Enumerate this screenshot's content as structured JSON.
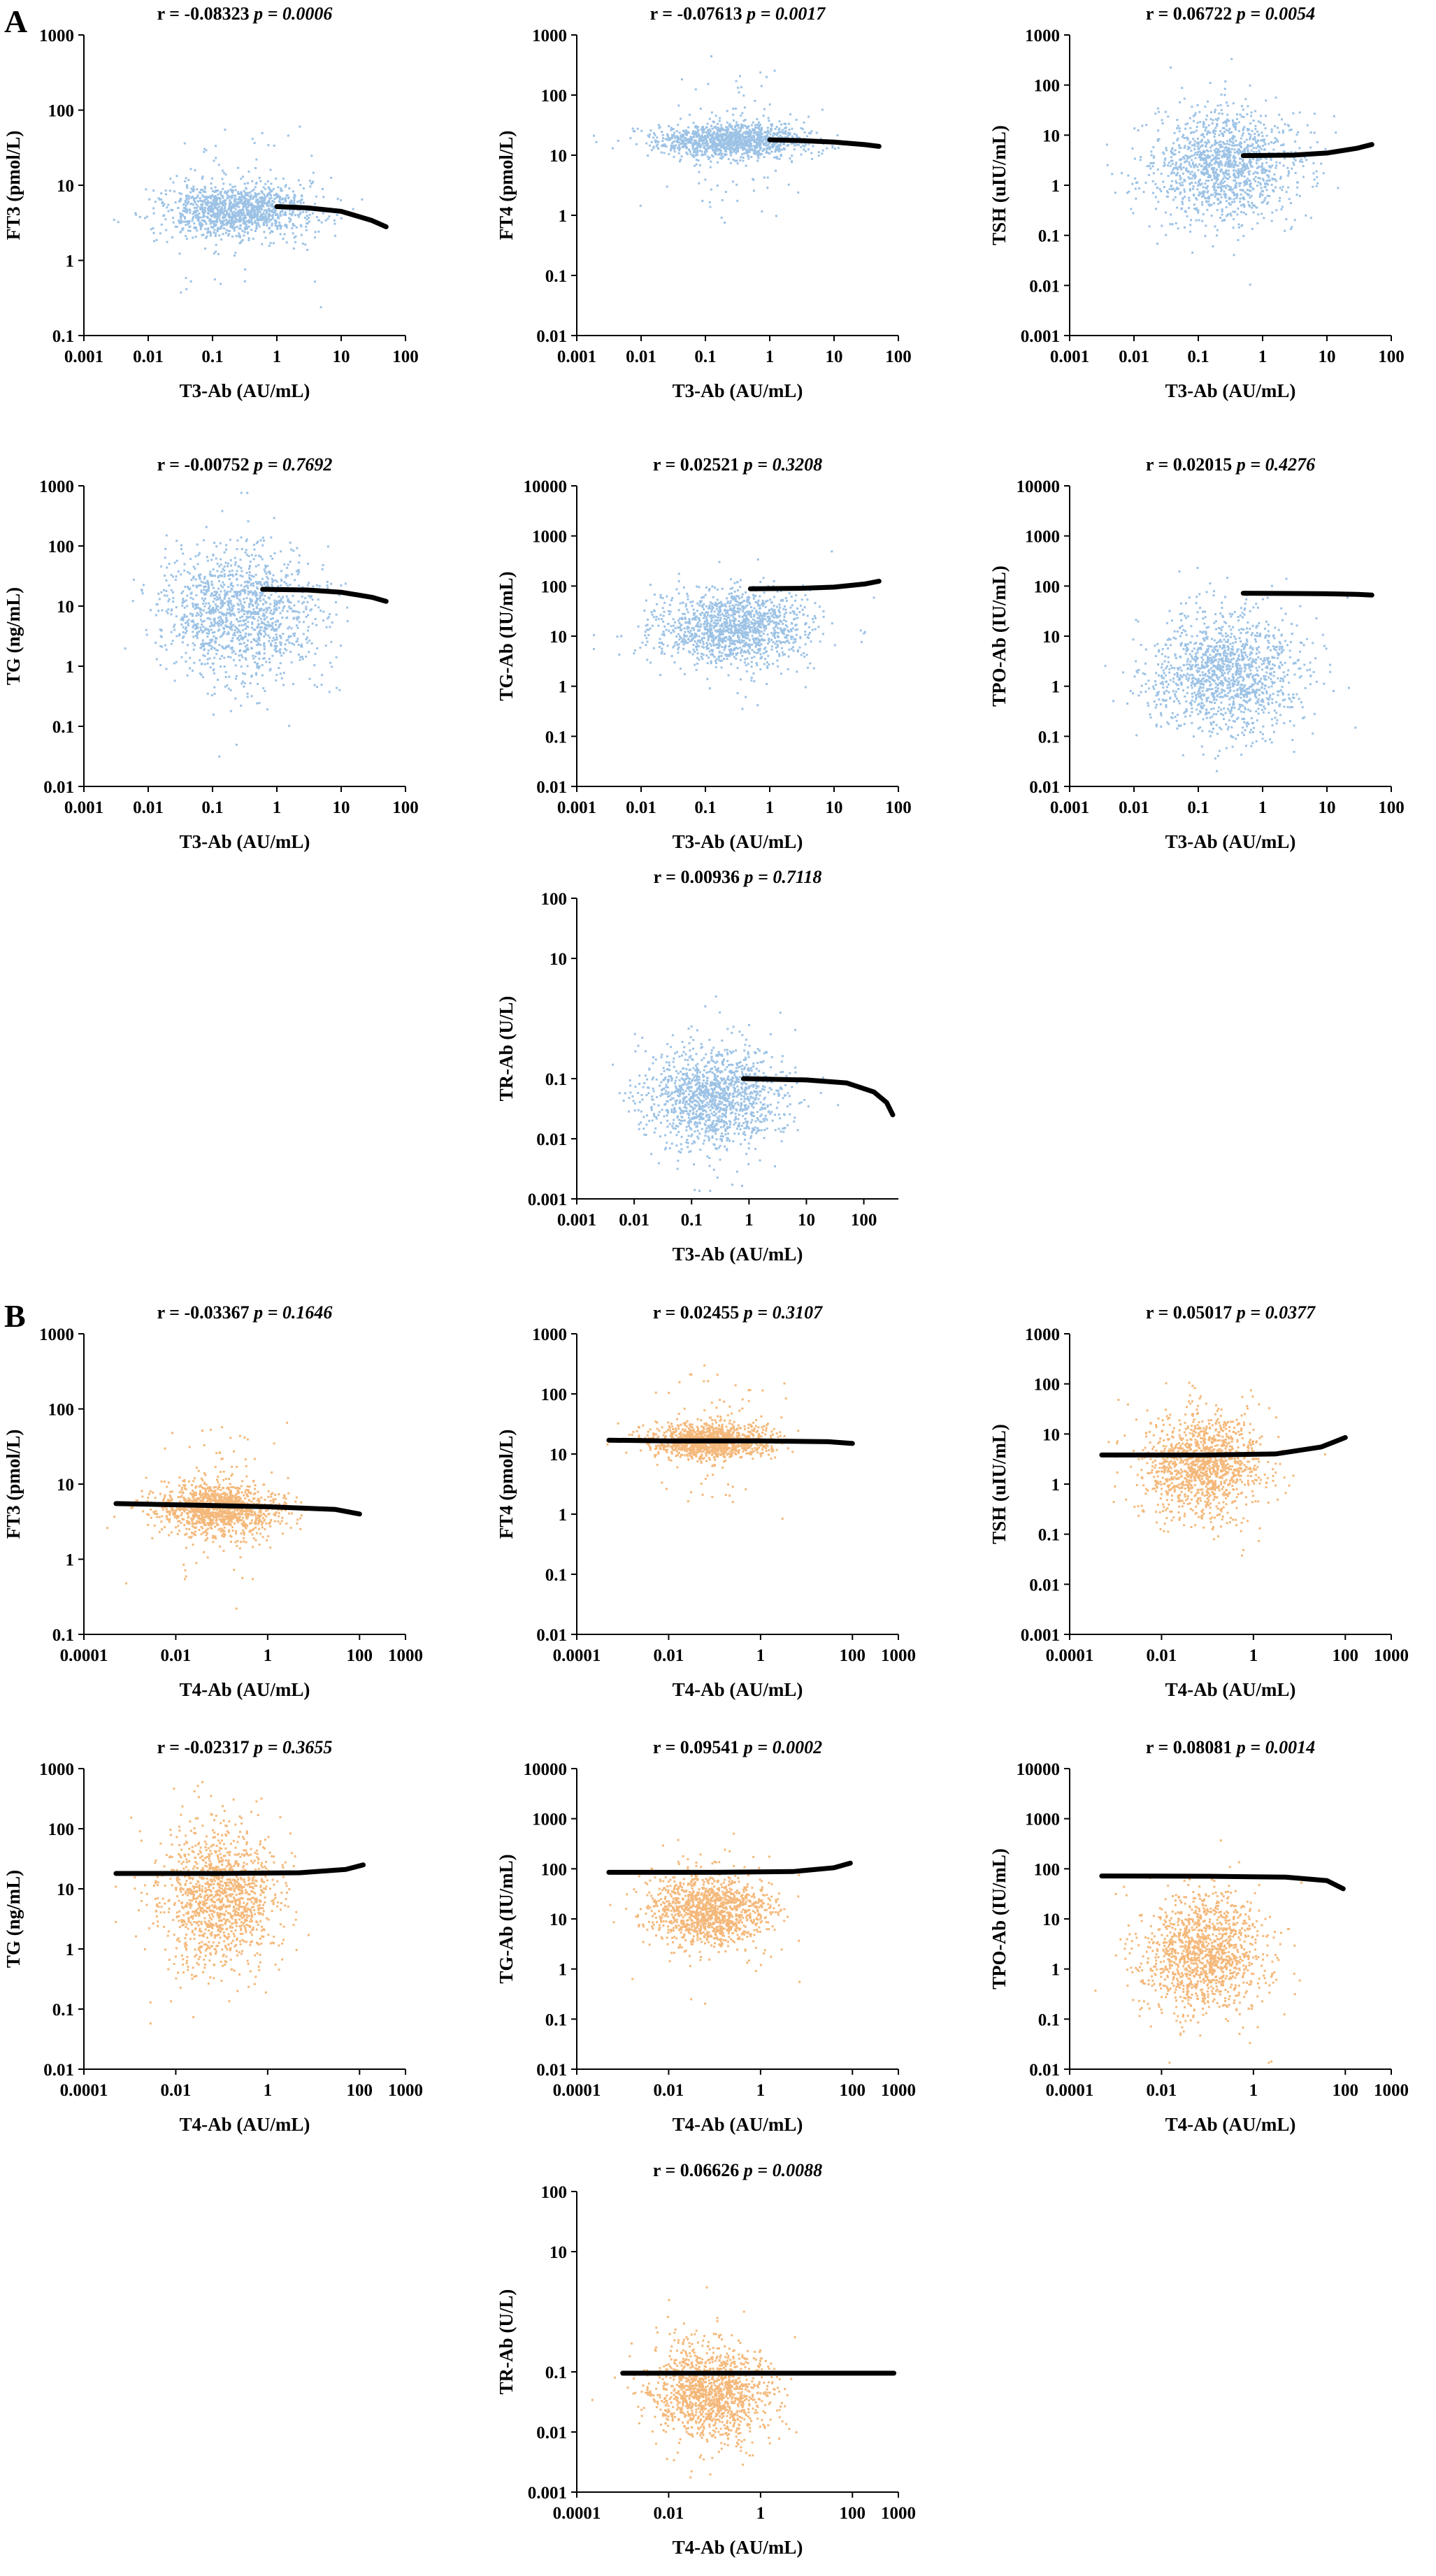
{
  "panels": [
    {
      "label": "A",
      "color": "#9cc2e5",
      "seed": 11
    },
    {
      "label": "B",
      "color": "#f4b87a",
      "seed": 29
    }
  ],
  "chart_data": [
    {
      "id": "a1",
      "panel": "A",
      "type": "scatter",
      "r": "r = -0.08323",
      "p": "p = 0.0006",
      "xlabel": "T3-Ab (AU/mL)",
      "ylabel": "FT3 (pmol/L)",
      "xticks": [
        "0.001",
        "0.01",
        "0.1",
        "1",
        "10",
        "100"
      ],
      "xlim": [
        0.001,
        100
      ],
      "yticks": [
        "0.1",
        "1",
        "10",
        "100",
        "1000"
      ],
      "ylim": [
        0.1,
        1000
      ],
      "cloud": {
        "xc": 0.25,
        "xsd": 0.6,
        "yc": 4.8,
        "ysd": 0.18
      },
      "fit": [
        [
          1,
          5.2
        ],
        [
          3,
          5.0
        ],
        [
          10,
          4.5
        ],
        [
          30,
          3.4
        ],
        [
          50,
          2.8
        ]
      ]
    },
    {
      "id": "a2",
      "panel": "A",
      "type": "scatter",
      "r": "r = -0.07613",
      "p": "p = 0.0017",
      "xlabel": "T3-Ab (AU/mL)",
      "ylabel": "FT4 (pmol/L)",
      "xticks": [
        "0.001",
        "0.01",
        "0.1",
        "1",
        "10",
        "100"
      ],
      "xlim": [
        0.001,
        100
      ],
      "yticks": [
        "0.01",
        "0.1",
        "1",
        "10",
        "100",
        "1000"
      ],
      "ylim": [
        0.01,
        1000
      ],
      "cloud": {
        "xc": 0.25,
        "xsd": 0.6,
        "yc": 18,
        "ysd": 0.14
      },
      "fit": [
        [
          1,
          18
        ],
        [
          3,
          17.5
        ],
        [
          10,
          16.5
        ],
        [
          30,
          15
        ],
        [
          50,
          14
        ]
      ]
    },
    {
      "id": "a3",
      "panel": "A",
      "type": "scatter",
      "r": "r = 0.06722",
      "p": "p = 0.0054",
      "xlabel": "T3-Ab (AU/mL)",
      "ylabel": "TSH (uIU/mL)",
      "xticks": [
        "0.001",
        "0.01",
        "0.1",
        "1",
        "10",
        "100"
      ],
      "xlim": [
        0.001,
        100
      ],
      "yticks": [
        "0.001",
        "0.01",
        "0.1",
        "1",
        "10",
        "100",
        "1000"
      ],
      "ylim": [
        0.001,
        1000
      ],
      "cloud": {
        "xc": 0.25,
        "xsd": 0.6,
        "yc": 2.5,
        "ysd": 0.55
      },
      "fit": [
        [
          0.5,
          3.9
        ],
        [
          3,
          4.0
        ],
        [
          10,
          4.4
        ],
        [
          30,
          5.5
        ],
        [
          50,
          6.5
        ]
      ]
    },
    {
      "id": "a4",
      "panel": "A",
      "type": "scatter",
      "r": "r = -0.00752",
      "p": "p = 0.7692",
      "xlabel": "T3-Ab (AU/mL)",
      "ylabel": "TG (ng/mL)",
      "xticks": [
        "0.001",
        "0.01",
        "0.1",
        "1",
        "10",
        "100"
      ],
      "xlim": [
        0.001,
        100
      ],
      "yticks": [
        "0.01",
        "0.1",
        "1",
        "10",
        "100",
        "1000"
      ],
      "ylim": [
        0.01,
        1000
      ],
      "cloud": {
        "xc": 0.25,
        "xsd": 0.6,
        "yc": 8,
        "ysd": 0.55
      },
      "fit": [
        [
          0.6,
          19
        ],
        [
          3,
          18.5
        ],
        [
          10,
          17
        ],
        [
          30,
          14
        ],
        [
          50,
          12
        ]
      ]
    },
    {
      "id": "a5",
      "panel": "A",
      "type": "scatter",
      "r": "r = 0.02521",
      "p": "p = 0.3208",
      "xlabel": "T3-Ab (AU/mL)",
      "ylabel": "TG-Ab (IU/mL)",
      "xticks": [
        "0.001",
        "0.01",
        "0.1",
        "1",
        "10",
        "100"
      ],
      "xlim": [
        0.001,
        100
      ],
      "yticks": [
        "0.01",
        "0.1",
        "1",
        "10",
        "100",
        "1000",
        "10000"
      ],
      "ylim": [
        0.01,
        10000
      ],
      "cloud": {
        "xc": 0.25,
        "xsd": 0.6,
        "yc": 15,
        "ysd": 0.35
      },
      "fit": [
        [
          0.5,
          88
        ],
        [
          3,
          90
        ],
        [
          10,
          95
        ],
        [
          30,
          110
        ],
        [
          50,
          125
        ]
      ]
    },
    {
      "id": "a6",
      "panel": "A",
      "type": "scatter",
      "r": "r = 0.02015",
      "p": "p = 0.4276",
      "xlabel": "T3-Ab (AU/mL)",
      "ylabel": "TPO-Ab (IU/mL)",
      "xticks": [
        "0.001",
        "0.01",
        "0.1",
        "1",
        "10",
        "100"
      ],
      "xlim": [
        0.001,
        100
      ],
      "yticks": [
        "0.01",
        "0.1",
        "1",
        "10",
        "100",
        "1000",
        "10000"
      ],
      "ylim": [
        0.01,
        10000
      ],
      "cloud": {
        "xc": 0.25,
        "xsd": 0.6,
        "yc": 2,
        "ysd": 0.6
      },
      "fit": [
        [
          0.5,
          72
        ],
        [
          3,
          71
        ],
        [
          10,
          70
        ],
        [
          30,
          68
        ],
        [
          50,
          66
        ]
      ]
    },
    {
      "id": "a7",
      "panel": "A",
      "type": "scatter",
      "r": "r = 0.00936",
      "p": "p = 0.7118",
      "xlabel": "T3-Ab (AU/mL)",
      "ylabel": "TR-Ab (U/L)",
      "xticks": [
        "0.001",
        "0.01",
        "0.1",
        "1",
        "10",
        "100"
      ],
      "xlim": [
        0.001,
        400
      ],
      "yticks": [
        "0.001",
        "0.01",
        "0.1",
        "10",
        "100"
      ],
      "ylim": [
        0.001,
        100
      ],
      "cloud": {
        "xc": 0.25,
        "xsd": 0.6,
        "yc": 0.05,
        "ysd": 0.4
      },
      "fit": [
        [
          0.8,
          0.1
        ],
        [
          10,
          0.095
        ],
        [
          50,
          0.085
        ],
        [
          150,
          0.06
        ],
        [
          250,
          0.04
        ],
        [
          320,
          0.025
        ]
      ]
    },
    {
      "id": "b1",
      "panel": "B",
      "type": "scatter",
      "r": "r = -0.03367",
      "p": "p = 0.1646",
      "xlabel": "T4-Ab (AU/mL)",
      "ylabel": "FT3 (pmol/L)",
      "xticks": [
        "0.0001",
        "0.01",
        "1",
        "100",
        "1000"
      ],
      "xlim": [
        0.0001,
        1000
      ],
      "yticks": [
        "0.1",
        "1",
        "10",
        "100",
        "1000"
      ],
      "ylim": [
        0.1,
        1000
      ],
      "cloud": {
        "xc": 0.08,
        "xsd": 0.65,
        "yc": 4.8,
        "ysd": 0.17
      },
      "fit": [
        [
          0.0005,
          5.5
        ],
        [
          0.01,
          5.3
        ],
        [
          1,
          5.0
        ],
        [
          30,
          4.6
        ],
        [
          100,
          4.0
        ]
      ]
    },
    {
      "id": "b2",
      "panel": "B",
      "type": "scatter",
      "r": "r = 0.02455",
      "p": "p = 0.3107",
      "xlabel": "T4-Ab (AU/mL)",
      "ylabel": "FT4 (pmol/L)",
      "xticks": [
        "0.0001",
        "0.01",
        "1",
        "100",
        "1000"
      ],
      "xlim": [
        0.0001,
        1000
      ],
      "yticks": [
        "0.01",
        "0.1",
        "1",
        "10",
        "100",
        "1000"
      ],
      "ylim": [
        0.01,
        1000
      ],
      "cloud": {
        "xc": 0.08,
        "xsd": 0.65,
        "yc": 17,
        "ysd": 0.14
      },
      "fit": [
        [
          0.0005,
          17
        ],
        [
          0.01,
          16.5
        ],
        [
          1,
          16.5
        ],
        [
          30,
          16
        ],
        [
          100,
          15
        ]
      ]
    },
    {
      "id": "b3",
      "panel": "B",
      "type": "scatter",
      "r": "r = 0.05017",
      "p": "p = 0.0377",
      "xlabel": "T4-Ab (AU/mL)",
      "ylabel": "TSH (uIU/mL)",
      "xticks": [
        "0.0001",
        "0.01",
        "1",
        "100",
        "1000"
      ],
      "xlim": [
        0.0001,
        1000
      ],
      "yticks": [
        "0.001",
        "0.01",
        "0.1",
        "1",
        "10",
        "100",
        "1000"
      ],
      "ylim": [
        0.001,
        1000
      ],
      "cloud": {
        "xc": 0.08,
        "xsd": 0.65,
        "yc": 2.5,
        "ysd": 0.5
      },
      "fit": [
        [
          0.0005,
          3.8
        ],
        [
          0.1,
          3.8
        ],
        [
          3,
          4.0
        ],
        [
          30,
          5.5
        ],
        [
          100,
          8.5
        ]
      ]
    },
    {
      "id": "b4",
      "panel": "B",
      "type": "scatter",
      "r": "r = -0.02317",
      "p": "p = 0.3655",
      "xlabel": "T4-Ab (AU/mL)",
      "ylabel": "TG (ng/mL)",
      "xticks": [
        "0.0001",
        "0.01",
        "1",
        "100",
        "1000"
      ],
      "xlim": [
        0.0001,
        1000
      ],
      "yticks": [
        "0.01",
        "0.1",
        "1",
        "10",
        "100",
        "1000"
      ],
      "ylim": [
        0.01,
        1000
      ],
      "cloud": {
        "xc": 0.08,
        "xsd": 0.65,
        "yc": 8,
        "ysd": 0.55
      },
      "fit": [
        [
          0.0005,
          18
        ],
        [
          0.1,
          18
        ],
        [
          5,
          18.5
        ],
        [
          50,
          21
        ],
        [
          120,
          25
        ]
      ]
    },
    {
      "id": "b5",
      "panel": "B",
      "type": "scatter",
      "r": "r = 0.09541",
      "p": "p = 0.0002",
      "xlabel": "T4-Ab (AU/mL)",
      "ylabel": "TG-Ab (IU/mL)",
      "xticks": [
        "0.0001",
        "0.01",
        "1",
        "100",
        "1000"
      ],
      "xlim": [
        0.0001,
        1000
      ],
      "yticks": [
        "0.01",
        "0.1",
        "1",
        "10",
        "100",
        "1000",
        "10000"
      ],
      "ylim": [
        0.01,
        10000
      ],
      "cloud": {
        "xc": 0.08,
        "xsd": 0.65,
        "yc": 15,
        "ysd": 0.35
      },
      "fit": [
        [
          0.0005,
          85
        ],
        [
          0.1,
          85
        ],
        [
          5,
          88
        ],
        [
          40,
          105
        ],
        [
          90,
          130
        ]
      ]
    },
    {
      "id": "b6",
      "panel": "B",
      "type": "scatter",
      "r": "r = 0.08081",
      "p": "p = 0.0014",
      "xlabel": "T4-Ab (AU/mL)",
      "ylabel": "TPO-Ab (IU/mL)",
      "xticks": [
        "0.0001",
        "0.01",
        "1",
        "100",
        "1000"
      ],
      "xlim": [
        0.0001,
        1000
      ],
      "yticks": [
        "0.01",
        "0.1",
        "1",
        "10",
        "100",
        "1000",
        "10000"
      ],
      "ylim": [
        0.01,
        10000
      ],
      "cloud": {
        "xc": 0.08,
        "xsd": 0.65,
        "yc": 2,
        "ysd": 0.6
      },
      "fit": [
        [
          0.0005,
          72
        ],
        [
          0.1,
          71
        ],
        [
          5,
          68
        ],
        [
          40,
          58
        ],
        [
          90,
          40
        ]
      ]
    },
    {
      "id": "b7",
      "panel": "B",
      "type": "scatter",
      "r": "r = 0.06626",
      "p": "p = 0.0088",
      "xlabel": "T4-Ab (AU/mL)",
      "ylabel": "TR-Ab (U/L)",
      "xticks": [
        "0.0001",
        "0.01",
        "1",
        "100",
        "1000"
      ],
      "xlim": [
        0.0001,
        1000
      ],
      "yticks": [
        "0.001",
        "0.01",
        "0.1",
        "10",
        "100"
      ],
      "ylim": [
        0.001,
        100
      ],
      "cloud": {
        "xc": 0.08,
        "xsd": 0.65,
        "yc": 0.05,
        "ysd": 0.4
      },
      "fit": [
        [
          0.001,
          0.095
        ],
        [
          1,
          0.095
        ],
        [
          100,
          0.095
        ],
        [
          800,
          0.095
        ]
      ]
    }
  ]
}
